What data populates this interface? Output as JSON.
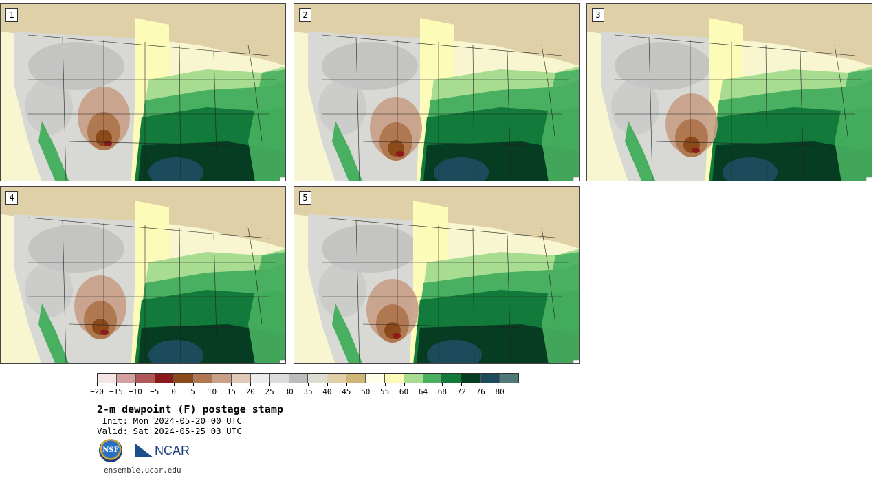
{
  "panels": [
    {
      "label": "1"
    },
    {
      "label": "2"
    },
    {
      "label": "3"
    },
    {
      "label": "4"
    },
    {
      "label": "5"
    }
  ],
  "colorbar": {
    "colors": [
      "#f5e4e4",
      "#d4a0a0",
      "#b05858",
      "#8c1a1a",
      "#8c4a1a",
      "#b07850",
      "#c8a088",
      "#e0c8b8",
      "#ececec",
      "#dcdcdc",
      "#bcbcbc",
      "#dcdcd0",
      "#e0d0a8",
      "#d0b478",
      "#fefee8",
      "#fcfcb8",
      "#a8dc90",
      "#48b060",
      "#127a3a",
      "#063c22",
      "#1c4c5c",
      "#507878"
    ],
    "tick_labels": [
      "−20",
      "−15",
      "−10",
      "−5",
      "0",
      "5",
      "10",
      "15",
      "20",
      "25",
      "30",
      "35",
      "40",
      "45",
      "50",
      "55",
      "60",
      "64",
      "68",
      "72",
      "76",
      "80"
    ]
  },
  "title": "2-m dewpoint (F) postage stamp",
  "init_line": " Init: Mon 2024-05-20 00 UTC",
  "valid_line": "Valid: Sat 2024-05-25 03 UTC",
  "logos": {
    "nsf_text": "NSF",
    "ncar_text": "NCAR"
  },
  "url": "ensemble.ucar.edu"
}
